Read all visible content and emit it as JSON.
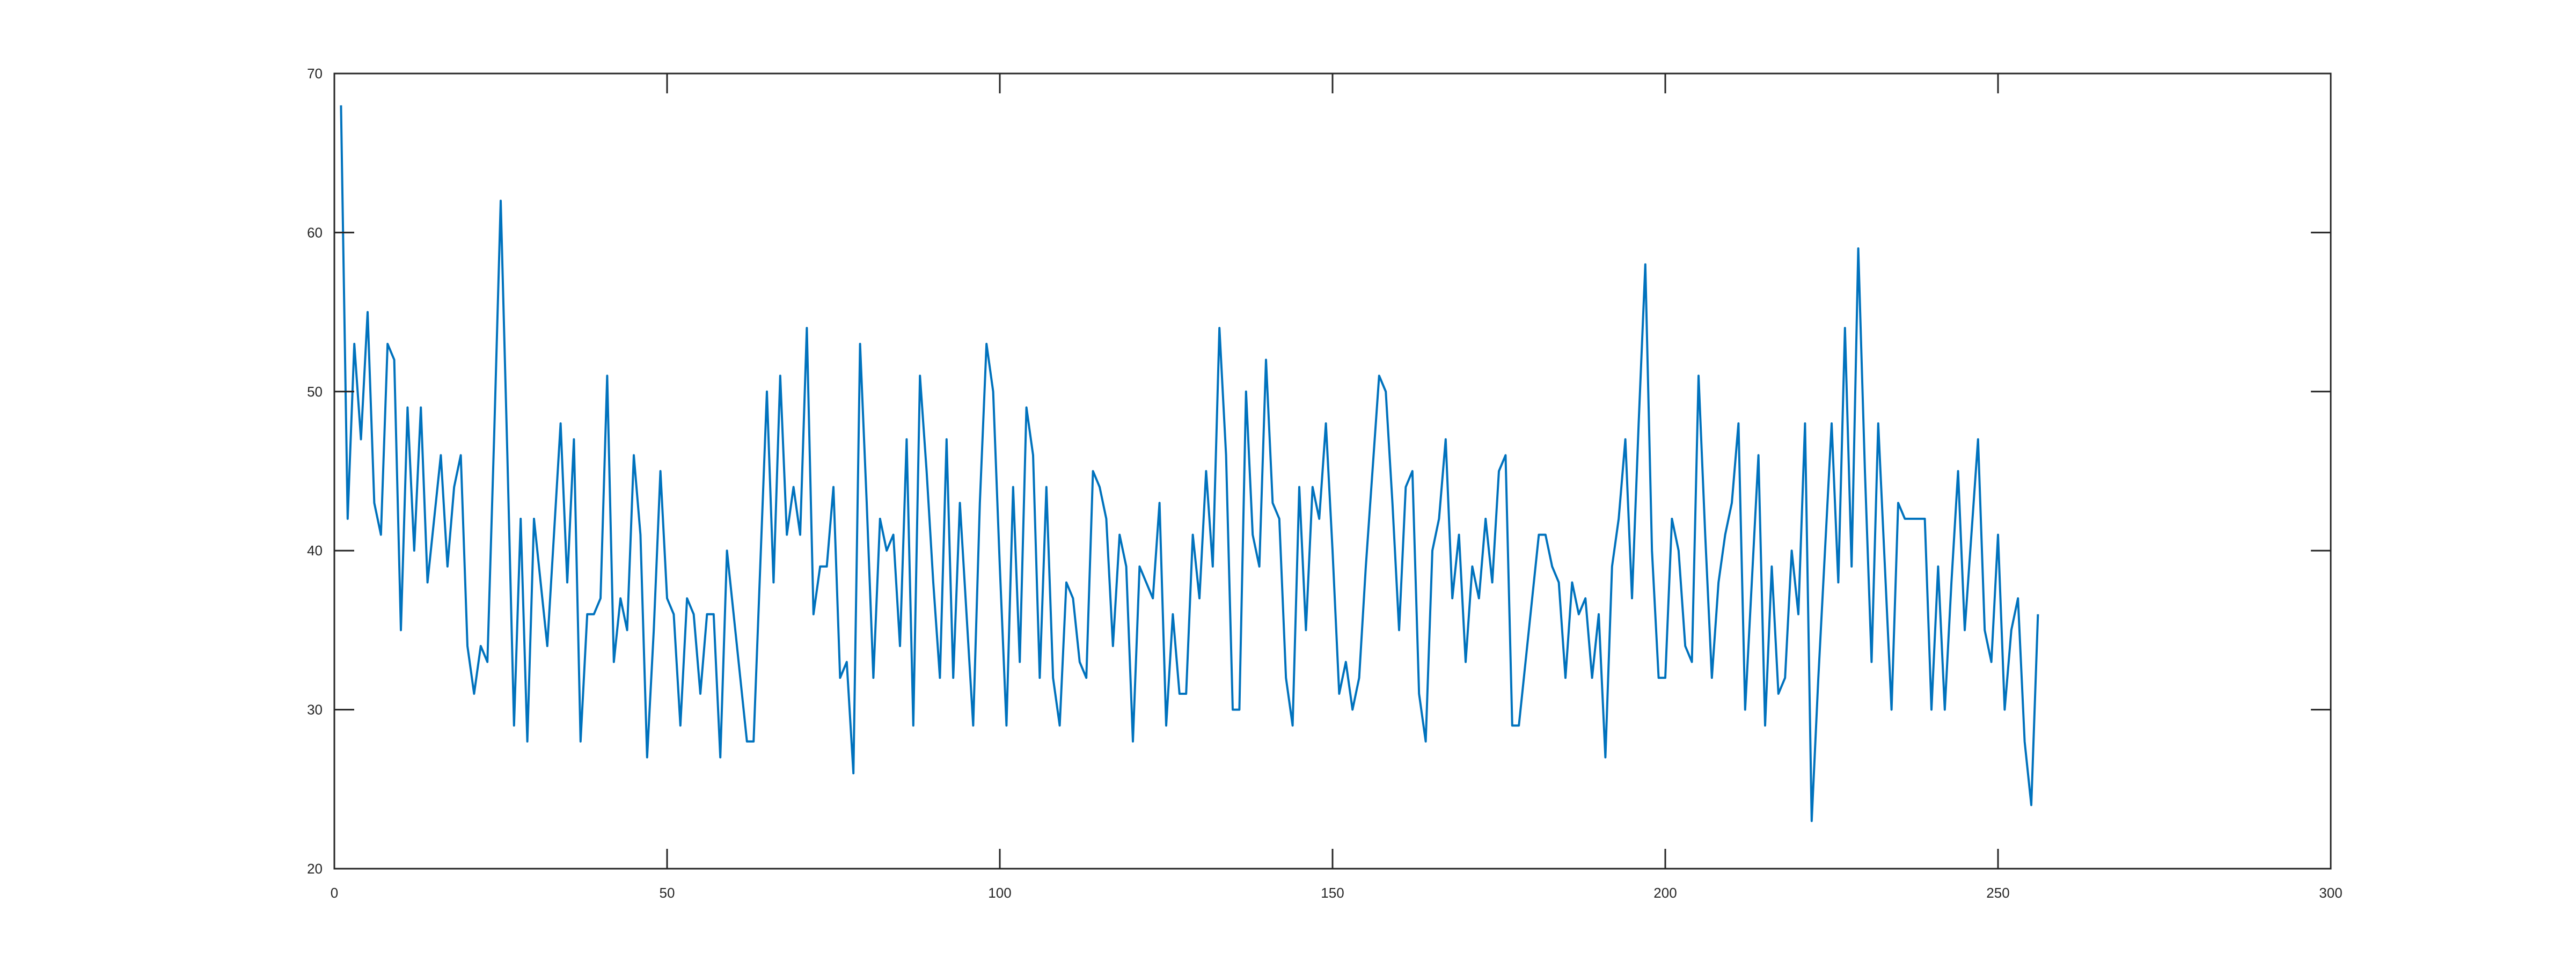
{
  "figure": {
    "background_color": "#ffffff",
    "plot_background_color": "#ffffff",
    "axis_color": "#262626",
    "tick_label_color": "#262626"
  },
  "chart_data": {
    "type": "line",
    "title": "",
    "xlabel": "",
    "ylabel": "",
    "grid": false,
    "legend": null,
    "line_color": "#0072BD",
    "line_width": 4,
    "xlim": [
      0,
      300
    ],
    "ylim": [
      20,
      70
    ],
    "xticks": [
      0,
      50,
      100,
      150,
      200,
      250,
      300
    ],
    "xtick_labels": [
      "0",
      "50",
      "100",
      "150",
      "200",
      "250",
      "300"
    ],
    "yticks": [
      20,
      30,
      40,
      50,
      60,
      70
    ],
    "ytick_labels": [
      "20",
      "30",
      "40",
      "50",
      "60",
      "70"
    ],
    "tick_direction": "in",
    "box": true,
    "n_points": 256,
    "x_start": 1,
    "x_step": 1,
    "values": [
      68,
      42,
      53,
      47,
      55,
      43,
      41,
      53,
      52,
      35,
      49,
      40,
      49,
      38,
      42,
      46,
      39,
      44,
      46,
      34,
      31,
      34,
      33,
      47,
      62,
      46,
      29,
      42,
      28,
      42,
      38,
      34,
      41,
      48,
      38,
      47,
      28,
      36,
      36,
      37,
      51,
      33,
      37,
      35,
      46,
      41,
      27,
      35,
      45,
      37,
      36,
      29,
      37,
      36,
      31,
      36,
      36,
      27,
      40,
      36,
      32,
      28,
      28,
      39,
      50,
      38,
      51,
      41,
      44,
      41,
      54,
      36,
      39,
      39,
      44,
      32,
      33,
      26,
      53,
      43,
      32,
      42,
      40,
      41,
      34,
      47,
      29,
      51,
      45,
      38,
      32,
      47,
      32,
      43,
      36,
      29,
      43,
      53,
      50,
      39,
      29,
      44,
      33,
      49,
      46,
      32,
      44,
      32,
      29,
      38,
      37,
      33,
      32,
      45,
      44,
      42,
      34,
      41,
      39,
      28,
      39,
      38,
      37,
      43,
      29,
      36,
      31,
      31,
      41,
      37,
      45,
      39,
      54,
      46,
      30,
      30,
      50,
      41,
      39,
      52,
      43,
      42,
      32,
      29,
      44,
      35,
      44,
      42,
      48,
      40,
      31,
      33,
      30,
      32,
      39,
      45,
      51,
      50,
      43,
      35,
      44,
      45,
      31,
      28,
      40,
      42,
      47,
      37,
      41,
      33,
      39,
      37,
      42,
      38,
      45,
      46,
      29,
      29,
      33,
      37,
      41,
      41,
      39,
      38,
      32,
      38,
      36,
      37,
      32,
      36,
      27,
      39,
      42,
      47,
      37,
      48,
      58,
      40,
      32,
      32,
      42,
      40,
      34,
      33,
      51,
      41,
      32,
      38,
      41,
      43,
      48,
      30,
      38,
      46,
      29,
      39,
      31,
      32,
      40,
      36,
      48,
      23,
      32,
      40,
      48,
      38,
      54,
      39,
      59,
      45,
      33,
      48,
      39,
      30,
      43,
      42,
      42,
      42,
      42,
      30,
      39,
      30,
      38,
      45,
      35,
      41,
      47,
      35,
      33,
      41,
      30,
      35,
      37,
      28,
      24,
      36
    ]
  }
}
